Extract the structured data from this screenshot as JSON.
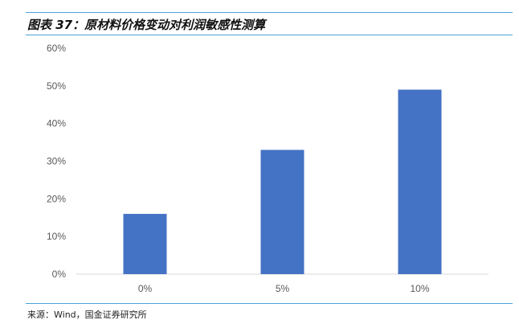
{
  "title": "图表 37：原材料价格变动对利润敏感性测算",
  "source": "来源：Wind，国金证券研究所",
  "chart_data": {
    "type": "bar",
    "title": "",
    "xlabel": "",
    "ylabel": "",
    "categories": [
      "0%",
      "5%",
      "10%"
    ],
    "values": [
      16,
      33,
      49
    ],
    "unit": "%",
    "ylim": [
      0,
      60
    ],
    "yticks": [
      "0%",
      "10%",
      "20%",
      "30%",
      "40%",
      "50%",
      "60%"
    ],
    "grid": false,
    "bar_color": "#4472c4"
  }
}
